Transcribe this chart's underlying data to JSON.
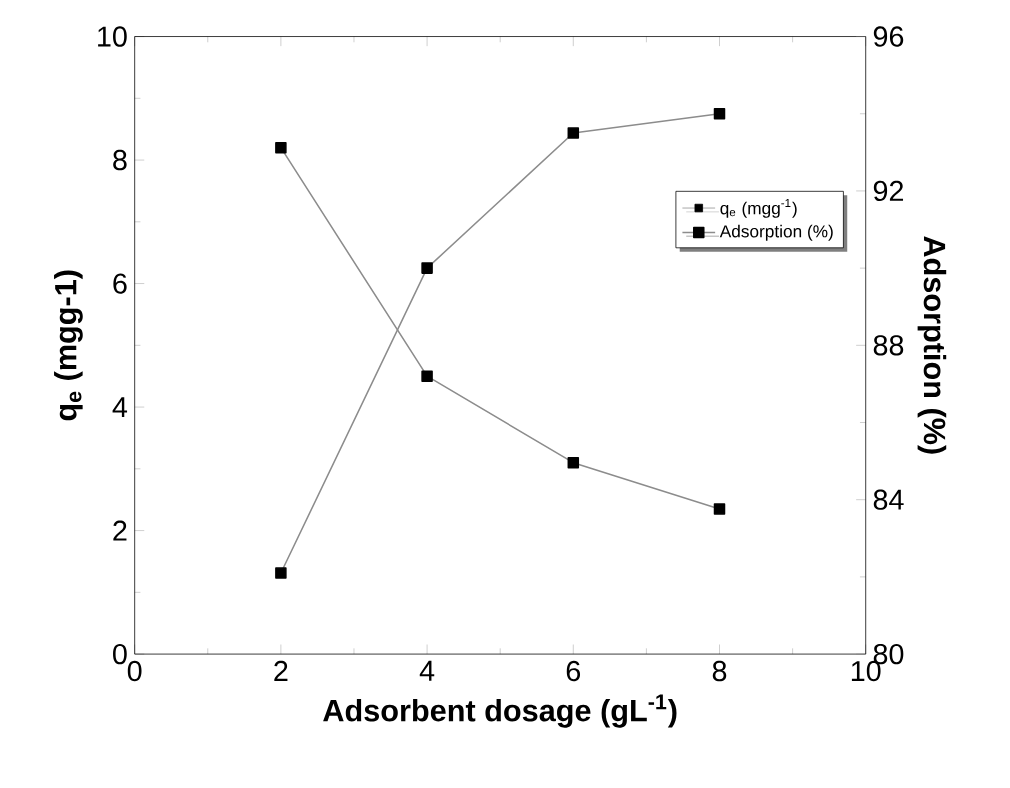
{
  "chart_data": {
    "type": "line",
    "xlabel": "Adsorbent dosage (gL$^{-1}$)",
    "ylabel": "q$_{e}$ (mgg-1)",
    "y2label": "Adsorption (%)",
    "x": [
      2,
      4,
      6,
      8
    ],
    "series": [
      {
        "name": "q$_{e}$ (mgg$^{-1}$)",
        "color": "#000000",
        "values": [
          8.2,
          4.5,
          3.1,
          2.35
        ]
      },
      {
        "name": "Adsorption (%)",
        "color": "#000000",
        "values": [
          82.1,
          90.0,
          93.5,
          94.0
        ],
        "axis": "y2"
      }
    ],
    "xlim": [
      0,
      10
    ],
    "xticks": [
      0,
      2,
      4,
      6,
      8,
      10
    ],
    "ylim": [
      0,
      10
    ],
    "yticks": [
      0,
      2,
      4,
      6,
      8,
      10
    ],
    "y2lim": [
      80,
      96
    ],
    "y2ticks": [
      80,
      84,
      88,
      92,
      96
    ],
    "marker": "square",
    "line_style": "solid",
    "legend": "top right",
    "grid": false
  }
}
